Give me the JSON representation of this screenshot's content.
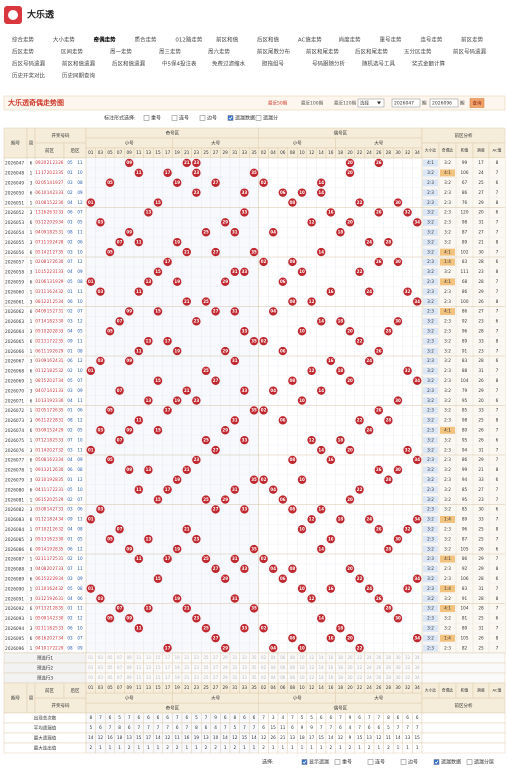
{
  "logo": "大乐透",
  "nav": [
    [
      "综合走势",
      "大小走势",
      "奇偶走势",
      "质合走势",
      "012路走势",
      "前区和值",
      "后区和值",
      "AC值走势",
      "尚度走势",
      "重号走势",
      "连号走势",
      "前区走势"
    ],
    [
      "后区走势",
      "区间走势",
      "周一走势",
      "周三走势",
      "周六走势",
      "前区尾数分布",
      "前区和尾走势",
      "后区和尾走势",
      "五分区走势",
      "前区号码遗漏"
    ],
    [
      "后区号码遗漏",
      "前区和值遗漏",
      "后区和值遗漏",
      "中5保4投注表",
      "免费过滤缩水",
      "胆拖组号",
      "号码跟随分析",
      "随机选号工具",
      "奖式金额计算"
    ],
    [
      "历史开奖对比",
      "历史同期查询"
    ]
  ],
  "active_nav": [
    0,
    2
  ],
  "section": {
    "title": "大乐透奇偶走势图",
    "ranges": [
      "最近50期",
      "最近100期",
      "最近120期"
    ],
    "select": "选择",
    "from": "2026047",
    "from_unit": "期",
    "to": "2026096",
    "to_unit": "期",
    "button": "查询"
  },
  "mark_form": {
    "label": "标注形式选择:",
    "options": [
      {
        "label": "重号",
        "checked": false
      },
      {
        "label": "连号",
        "checked": false
      },
      {
        "label": "边号",
        "checked": false
      },
      {
        "label": "遗漏数据",
        "checked": true
      },
      {
        "label": "遗漏分",
        "checked": false
      }
    ]
  },
  "table": {
    "head": {
      "issue": "期号",
      "week": "周",
      "draw": "开奖号码",
      "front": "前区",
      "back": "后区",
      "odd": "奇号区",
      "even": "偶号区",
      "small": "小号",
      "big": "大号",
      "analysis": "前区分析",
      "analysis_cols": [
        "大小比",
        "奇偶比",
        "和值",
        "跨度",
        "AC值"
      ]
    },
    "odd_cols": [
      "01",
      "03",
      "05",
      "07",
      "09",
      "11",
      "13",
      "15",
      "17",
      "19",
      "21",
      "23",
      "25",
      "27",
      "29",
      "31",
      "33",
      "35"
    ],
    "even_cols": [
      "02",
      "04",
      "06",
      "08",
      "10",
      "12",
      "14",
      "16",
      "18",
      "20",
      "22",
      "24",
      "26",
      "28",
      "30",
      "32",
      "34"
    ],
    "rows": [
      [
        "2026047",
        "6",
        [
          "09",
          "20",
          "21",
          "23",
          "26"
        ],
        [
          "05",
          "11"
        ],
        "4:1",
        "3:2",
        99,
        17,
        8
      ],
      [
        "2026048",
        "1",
        [
          "11",
          "17",
          "20",
          "23",
          "35"
        ],
        [
          "01",
          "10"
        ],
        "3:2",
        "4:1",
        106,
        24,
        7
      ],
      [
        "2026049",
        "3",
        [
          "02",
          "05",
          "14",
          "19",
          "27"
        ],
        [
          "03",
          "08"
        ],
        "2:3",
        "3:2",
        67,
        25,
        6
      ],
      [
        "2026050",
        "6",
        [
          "06",
          "10",
          "14",
          "23",
          "33"
        ],
        [
          "02",
          "09"
        ],
        "2:3",
        "2:3",
        86,
        27,
        7
      ],
      [
        "2026051",
        "1",
        [
          "01",
          "08",
          "15",
          "22",
          "30"
        ],
        [
          "04",
          "12"
        ],
        "2:3",
        "2:3",
        76,
        29,
        8
      ],
      [
        "2026052",
        "3",
        [
          "13",
          "16",
          "26",
          "32",
          "33"
        ],
        [
          "06",
          "07"
        ],
        "3:2",
        "2:3",
        120,
        20,
        6
      ],
      [
        "2026053",
        "6",
        [
          "03",
          "12",
          "20",
          "29",
          "34"
        ],
        [
          "01",
          "05"
        ],
        "3:2",
        "2:3",
        98,
        31,
        7
      ],
      [
        "2026054",
        "1",
        [
          "04",
          "09",
          "18",
          "25",
          "31"
        ],
        [
          "08",
          "11"
        ],
        "3:2",
        "3:2",
        87,
        27,
        7
      ],
      [
        "2026055",
        "3",
        [
          "07",
          "11",
          "19",
          "24",
          "28"
        ],
        [
          "02",
          "06"
        ],
        "3:2",
        "3:2",
        89,
        21,
        8
      ],
      [
        "2026056",
        "6",
        [
          "05",
          "14",
          "21",
          "27",
          "35"
        ],
        [
          "03",
          "10"
        ],
        "3:2",
        "4:1",
        102,
        30,
        7
      ],
      [
        "2026057",
        "1",
        [
          "02",
          "08",
          "17",
          "26",
          "30"
        ],
        [
          "07",
          "12"
        ],
        "2:3",
        "1:4",
        83,
        28,
        6
      ],
      [
        "2026058",
        "3",
        [
          "10",
          "15",
          "22",
          "31",
          "33"
        ],
        [
          "04",
          "09"
        ],
        "3:2",
        "3:2",
        111,
        23,
        8
      ],
      [
        "2026059",
        "6",
        [
          "01",
          "06",
          "13",
          "19",
          "29"
        ],
        [
          "05",
          "08"
        ],
        "2:3",
        "4:1",
        68,
        28,
        7
      ],
      [
        "2026060",
        "1",
        [
          "03",
          "11",
          "16",
          "24",
          "32"
        ],
        [
          "01",
          "11"
        ],
        "2:3",
        "2:3",
        86,
        29,
        7
      ],
      [
        "2026061",
        "3",
        [
          "08",
          "12",
          "21",
          "25",
          "34"
        ],
        [
          "06",
          "10"
        ],
        "3:2",
        "2:3",
        100,
        26,
        8
      ],
      [
        "2026062",
        "6",
        [
          "04",
          "09",
          "15",
          "27",
          "31"
        ],
        [
          "02",
          "07"
        ],
        "2:3",
        "4:1",
        86,
        27,
        7
      ],
      [
        "2026063",
        "1",
        [
          "07",
          "14",
          "18",
          "23",
          "30"
        ],
        [
          "03",
          "12"
        ],
        "3:2",
        "2:3",
        92,
        23,
        6
      ],
      [
        "2026064",
        "3",
        [
          "05",
          "10",
          "20",
          "28",
          "33"
        ],
        [
          "04",
          "05"
        ],
        "3:2",
        "2:3",
        96,
        28,
        7
      ],
      [
        "2026065",
        "6",
        [
          "02",
          "13",
          "17",
          "22",
          "35"
        ],
        [
          "09",
          "11"
        ],
        "2:3",
        "3:2",
        89,
        33,
        8
      ],
      [
        "2026066",
        "1",
        [
          "06",
          "11",
          "19",
          "26",
          "29"
        ],
        [
          "01",
          "08"
        ],
        "3:2",
        "3:2",
        91,
        23,
        7
      ],
      [
        "2026067",
        "3",
        [
          "03",
          "09",
          "16",
          "24",
          "31"
        ],
        [
          "06",
          "12"
        ],
        "2:3",
        "3:2",
        83,
        28,
        6
      ],
      [
        "2026068",
        "6",
        [
          "01",
          "12",
          "18",
          "25",
          "32"
        ],
        [
          "02",
          "10"
        ],
        "3:2",
        "2:3",
        88,
        31,
        7
      ],
      [
        "2026069",
        "1",
        [
          "08",
          "15",
          "20",
          "27",
          "34"
        ],
        [
          "05",
          "07"
        ],
        "3:2",
        "2:3",
        104,
        26,
        8
      ],
      [
        "2026070",
        "3",
        [
          "04",
          "07",
          "14",
          "21",
          "33"
        ],
        [
          "03",
          "09"
        ],
        "2:3",
        "3:2",
        79,
        29,
        7
      ],
      [
        "2026071",
        "6",
        [
          "10",
          "13",
          "19",
          "23",
          "30"
        ],
        [
          "04",
          "11"
        ],
        "3:2",
        "3:2",
        95,
        20,
        6
      ],
      [
        "2026072",
        "1",
        [
          "02",
          "05",
          "17",
          "26",
          "35"
        ],
        [
          "01",
          "06"
        ],
        "2:3",
        "3:2",
        85,
        33,
        7
      ],
      [
        "2026073",
        "3",
        [
          "06",
          "11",
          "22",
          "28",
          "31"
        ],
        [
          "08",
          "12"
        ],
        "3:2",
        "2:3",
        98,
        25,
        8
      ],
      [
        "2026074",
        "6",
        [
          "03",
          "09",
          "15",
          "24",
          "29"
        ],
        [
          "02",
          "05"
        ],
        "2:3",
        "4:1",
        80,
        26,
        7
      ],
      [
        "2026075",
        "1",
        [
          "07",
          "12",
          "18",
          "25",
          "33"
        ],
        [
          "07",
          "10"
        ],
        "3:2",
        "3:2",
        95,
        26,
        6
      ],
      [
        "2026076",
        "3",
        [
          "01",
          "14",
          "20",
          "27",
          "32"
        ],
        [
          "03",
          "11"
        ],
        "3:2",
        "2:3",
        94,
        31,
        7
      ],
      [
        "2026077",
        "6",
        [
          "05",
          "08",
          "16",
          "23",
          "34"
        ],
        [
          "04",
          "09"
        ],
        "2:3",
        "2:3",
        86,
        29,
        7
      ],
      [
        "2026078",
        "1",
        [
          "09",
          "13",
          "21",
          "26",
          "30"
        ],
        [
          "06",
          "08"
        ],
        "3:2",
        "3:2",
        99,
        21,
        8
      ],
      [
        "2026079",
        "3",
        [
          "02",
          "10",
          "19",
          "28",
          "35"
        ],
        [
          "01",
          "12"
        ],
        "3:2",
        "2:3",
        94,
        33,
        6
      ],
      [
        "2026080",
        "6",
        [
          "04",
          "11",
          "17",
          "22",
          "31"
        ],
        [
          "05",
          "10"
        ],
        "2:3",
        "3:2",
        85,
        27,
        7
      ],
      [
        "2026081",
        "1",
        [
          "06",
          "15",
          "20",
          "25",
          "29"
        ],
        [
          "02",
          "07"
        ],
        "3:2",
        "3:2",
        95,
        23,
        7
      ],
      [
        "2026082",
        "3",
        [
          "03",
          "08",
          "14",
          "27",
          "33"
        ],
        [
          "03",
          "06"
        ],
        "2:3",
        "3:2",
        85,
        30,
        6
      ],
      [
        "2026083",
        "6",
        [
          "01",
          "12",
          "18",
          "24",
          "34"
        ],
        [
          "09",
          "11"
        ],
        "3:2",
        "1:4",
        89,
        33,
        7
      ],
      [
        "2026084",
        "1",
        [
          "07",
          "10",
          "21",
          "26",
          "32"
        ],
        [
          "04",
          "08"
        ],
        "3:2",
        "2:3",
        96,
        25,
        8
      ],
      [
        "2026085",
        "3",
        [
          "05",
          "13",
          "16",
          "23",
          "30"
        ],
        [
          "01",
          "05"
        ],
        "2:3",
        "3:2",
        87,
        25,
        7
      ],
      [
        "2026086",
        "6",
        [
          "09",
          "14",
          "19",
          "28",
          "35"
        ],
        [
          "06",
          "12"
        ],
        "3:2",
        "3:2",
        105,
        26,
        6
      ],
      [
        "2026087",
        "1",
        [
          "02",
          "11",
          "17",
          "25",
          "31"
        ],
        [
          "02",
          "10"
        ],
        "2:3",
        "4:1",
        86,
        29,
        7
      ],
      [
        "2026088",
        "3",
        [
          "04",
          "08",
          "20",
          "27",
          "33"
        ],
        [
          "07",
          "11"
        ],
        "3:2",
        "2:3",
        92,
        29,
        8
      ],
      [
        "2026089",
        "6",
        [
          "06",
          "15",
          "22",
          "29",
          "34"
        ],
        [
          "03",
          "09"
        ],
        "3:2",
        "2:3",
        106,
        28,
        6
      ],
      [
        "2026090",
        "1",
        [
          "01",
          "10",
          "16",
          "24",
          "32"
        ],
        [
          "05",
          "08"
        ],
        "2:3",
        "1:4",
        83,
        31,
        7
      ],
      [
        "2026091",
        "3",
        [
          "03",
          "12",
          "19",
          "26",
          "31"
        ],
        [
          "04",
          "06"
        ],
        "3:2",
        "3:2",
        91,
        28,
        8
      ],
      [
        "2026092",
        "6",
        [
          "07",
          "13",
          "21",
          "28",
          "35"
        ],
        [
          "01",
          "11"
        ],
        "3:2",
        "4:1",
        104,
        28,
        7
      ],
      [
        "2026093",
        "1",
        [
          "05",
          "09",
          "14",
          "23",
          "30"
        ],
        [
          "02",
          "12"
        ],
        "2:3",
        "3:2",
        81,
        25,
        6
      ],
      [
        "2026094",
        "3",
        [
          "02",
          "11",
          "18",
          "25",
          "33"
        ],
        [
          "06",
          "10"
        ],
        "3:2",
        "3:2",
        89,
        31,
        7
      ],
      [
        "2026095",
        "6",
        [
          "08",
          "16",
          "20",
          "27",
          "34"
        ],
        [
          "03",
          "07"
        ],
        "3:2",
        "1:4",
        105,
        26,
        8
      ],
      [
        "2026096",
        "1",
        [
          "04",
          "10",
          "17",
          "22",
          "29"
        ],
        [
          "08",
          "09"
        ],
        "2:3",
        "2:3",
        82,
        25,
        7
      ]
    ],
    "preselect": [
      "预选行1",
      "预选行2",
      "预选行3"
    ],
    "stats": [
      {
        "label": "出现总次数",
        "values": [
          8,
          7,
          6,
          5,
          7,
          6,
          6,
          6,
          6,
          7,
          6,
          5,
          7,
          9,
          6,
          8,
          6,
          6,
          7,
          3,
          4,
          7,
          5,
          5,
          6,
          6,
          7,
          9,
          6,
          7,
          7,
          8,
          6,
          6,
          6
        ]
      },
      {
        "label": "平均遗漏值",
        "values": [
          5,
          6,
          7,
          8,
          6,
          7,
          7,
          7,
          7,
          6,
          7,
          8,
          6,
          4,
          7,
          5,
          7,
          7,
          6,
          15,
          11,
          6,
          9,
          9,
          7,
          7,
          6,
          4,
          7,
          6,
          6,
          5,
          7,
          7,
          7
        ]
      },
      {
        "label": "最大遗漏值",
        "values": [
          14,
          12,
          16,
          18,
          13,
          15,
          17,
          14,
          12,
          11,
          16,
          19,
          13,
          10,
          14,
          12,
          15,
          14,
          12,
          26,
          21,
          13,
          18,
          17,
          15,
          14,
          12,
          9,
          15,
          13,
          12,
          11,
          14,
          13,
          15
        ]
      },
      {
        "label": "最大连出值",
        "values": [
          2,
          1,
          1,
          1,
          2,
          1,
          1,
          1,
          2,
          2,
          1,
          1,
          2,
          2,
          1,
          2,
          1,
          1,
          2,
          1,
          1,
          1,
          1,
          1,
          1,
          2,
          1,
          2,
          1,
          2,
          1,
          2,
          1,
          1,
          1
        ]
      }
    ]
  },
  "footer": {
    "label": "选择:",
    "options": [
      {
        "label": "显示遗漏",
        "checked": true
      },
      {
        "label": "重号",
        "checked": false
      },
      {
        "label": "连号",
        "checked": false
      },
      {
        "label": "边号",
        "checked": false
      },
      {
        "label": "遗漏数据",
        "checked": true
      },
      {
        "label": "遗漏分层",
        "checked": false
      }
    ]
  }
}
